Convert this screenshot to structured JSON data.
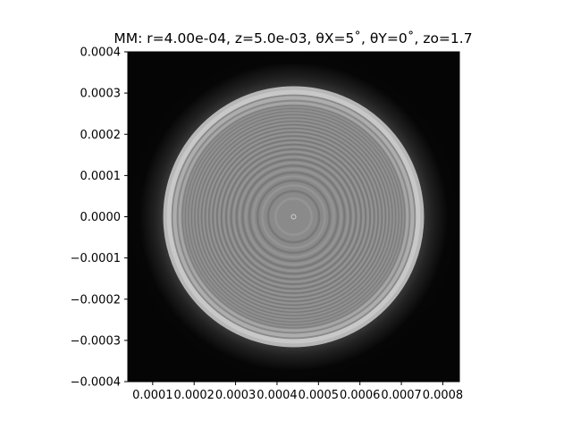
{
  "chart_data": {
    "type": "heatmap",
    "title": "MM: r=4.00e-04, z=5.0e-03, θX=5˚, θY=0˚, zo=1.7",
    "xlabel": "",
    "ylabel": "",
    "xlim": [
      4e-05,
      0.00084
    ],
    "ylim": [
      -0.0004,
      0.0004
    ],
    "x_ticks": [
      0.0001,
      0.0002,
      0.0003,
      0.0004,
      0.0005,
      0.0006,
      0.0007,
      0.0008
    ],
    "x_tick_labels": [
      "0.0001",
      "0.0002",
      "0.0003",
      "0.0004",
      "0.0005",
      "0.0006",
      "0.0007",
      "0.0008"
    ],
    "y_ticks": [
      0.0004,
      0.0003,
      0.0002,
      0.0001,
      0.0,
      -0.0001,
      -0.0002,
      -0.0003,
      -0.0004
    ],
    "y_tick_labels": [
      "0.0004",
      "0.0003",
      "0.0002",
      "0.0001",
      "0.0000",
      "−0.0001",
      "−0.0002",
      "−0.0003",
      "−0.0004"
    ],
    "colormap": "gray",
    "pattern": {
      "description": "circular diffraction pattern with concentric fringes",
      "center": [
        0.00044,
        0.0
      ],
      "radius": 0.000305,
      "background_color": "#050505",
      "disk_gray": "#8a8a8a",
      "rim_gray": "#c8c8c8"
    },
    "grid": false,
    "legend": "none"
  }
}
